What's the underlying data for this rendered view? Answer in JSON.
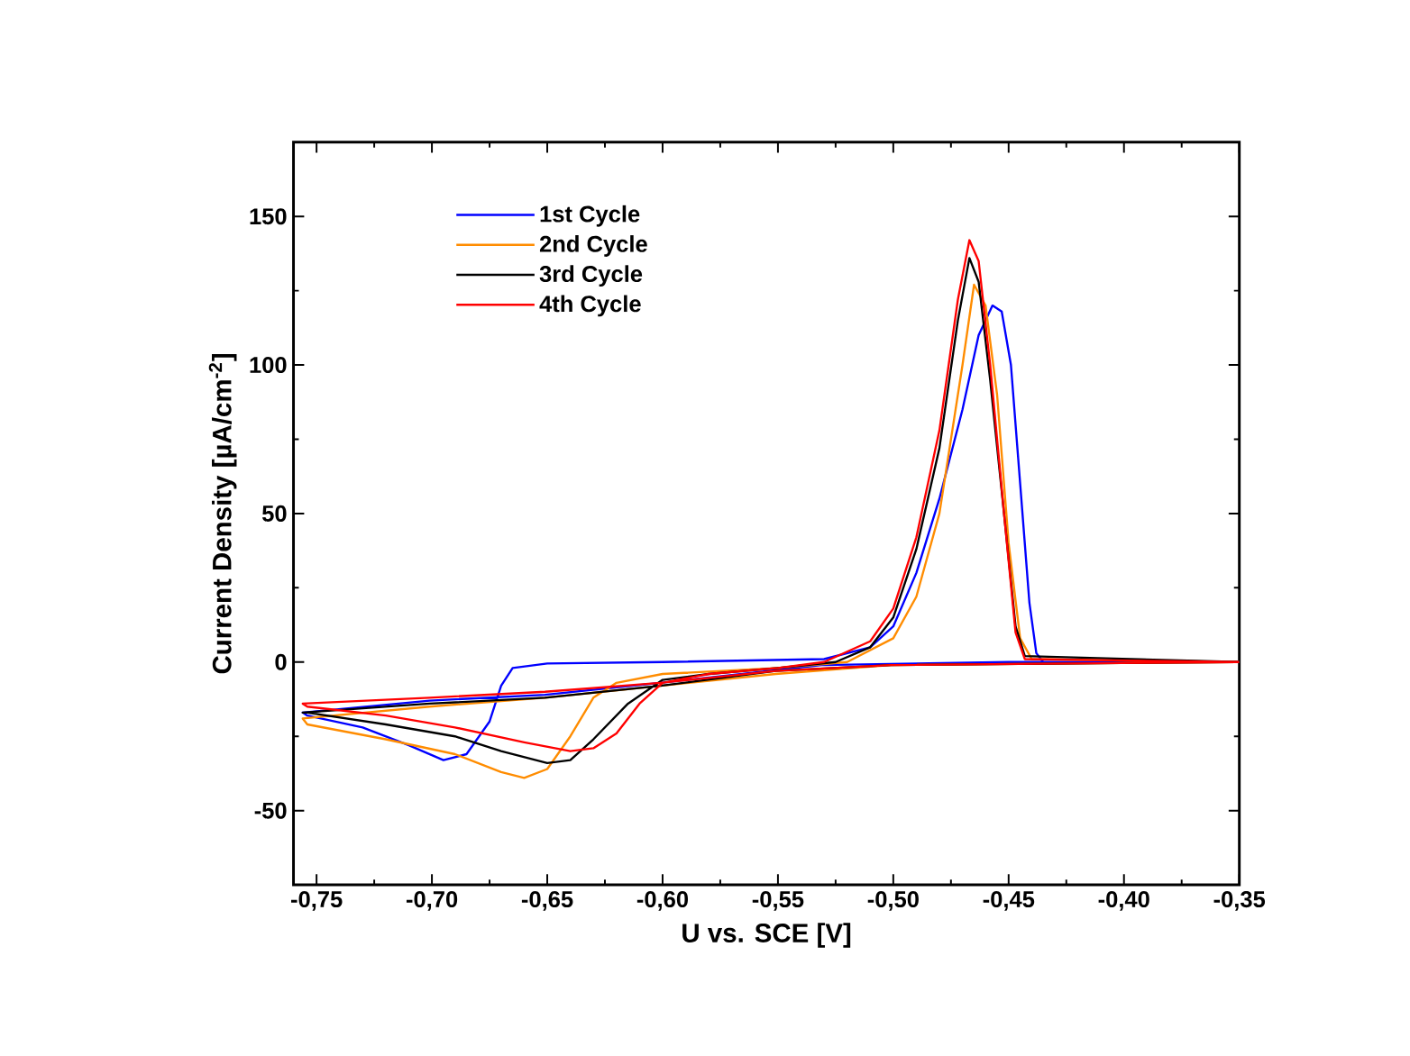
{
  "chart_data": {
    "type": "line",
    "xlabel": "U vs. SCE [V]",
    "ylabel": "Current Density [µA/cm$^{-2}$]",
    "xlim": [
      -0.76,
      -0.35
    ],
    "ylim": [
      -75,
      175
    ],
    "xticks": [
      {
        "value": -0.75,
        "label": "-0,75"
      },
      {
        "value": -0.7,
        "label": "-0,70"
      },
      {
        "value": -0.65,
        "label": "-0,65"
      },
      {
        "value": -0.6,
        "label": "-0,60"
      },
      {
        "value": -0.55,
        "label": "-0,55"
      },
      {
        "value": -0.5,
        "label": "-0,50"
      },
      {
        "value": -0.45,
        "label": "-0,45"
      },
      {
        "value": -0.4,
        "label": "-0,40"
      },
      {
        "value": -0.35,
        "label": "-0,35"
      }
    ],
    "yticks": [
      -50,
      0,
      50,
      100,
      150
    ],
    "grid": false,
    "legend": "top left",
    "line_style": "solid",
    "series": [
      {
        "name": "1st Cycle",
        "color": "#0000ff",
        "x": [
          -0.351,
          -0.45,
          -0.531,
          -0.601,
          -0.651,
          -0.701,
          -0.756,
          -0.754,
          -0.73,
          -0.71,
          -0.695,
          -0.685,
          -0.675,
          -0.67,
          -0.665,
          -0.65,
          -0.6,
          -0.53,
          -0.51,
          -0.5,
          -0.49,
          -0.48,
          -0.47,
          -0.463,
          -0.457,
          -0.453,
          -0.449,
          -0.445,
          -0.441,
          -0.438,
          -0.435,
          -0.35
        ],
        "values": [
          0,
          0,
          -1,
          -7,
          -11,
          -13,
          -17,
          -18,
          -22,
          -28,
          -33,
          -31,
          -20,
          -8,
          -2,
          -0.5,
          0,
          1,
          5,
          12,
          30,
          55,
          85,
          110,
          120,
          118,
          100,
          60,
          20,
          3,
          0,
          0
        ]
      },
      {
        "name": "2nd Cycle",
        "color": "#ff8c00",
        "x": [
          -0.351,
          -0.501,
          -0.551,
          -0.601,
          -0.651,
          -0.701,
          -0.756,
          -0.754,
          -0.72,
          -0.69,
          -0.67,
          -0.66,
          -0.65,
          -0.64,
          -0.63,
          -0.62,
          -0.6,
          -0.55,
          -0.52,
          -0.5,
          -0.49,
          -0.48,
          -0.47,
          -0.465,
          -0.46,
          -0.455,
          -0.45,
          -0.445,
          -0.44,
          -0.35
        ],
        "values": [
          0,
          -1,
          -4,
          -8,
          -12,
          -15,
          -19,
          -21,
          -26,
          -31,
          -37,
          -39,
          -36,
          -25,
          -12,
          -7,
          -4,
          -2,
          0,
          8,
          22,
          50,
          100,
          127,
          120,
          90,
          40,
          8,
          1,
          0
        ]
      },
      {
        "name": "3rd Cycle",
        "color": "#000000",
        "x": [
          -0.351,
          -0.501,
          -0.551,
          -0.601,
          -0.651,
          -0.701,
          -0.756,
          -0.754,
          -0.72,
          -0.69,
          -0.67,
          -0.65,
          -0.64,
          -0.63,
          -0.615,
          -0.6,
          -0.58,
          -0.55,
          -0.525,
          -0.51,
          -0.5,
          -0.49,
          -0.48,
          -0.472,
          -0.467,
          -0.463,
          -0.458,
          -0.452,
          -0.447,
          -0.443,
          -0.35
        ],
        "values": [
          0,
          -1,
          -3,
          -8,
          -12,
          -14,
          -17,
          -17,
          -21,
          -25,
          -30,
          -34,
          -33,
          -26,
          -14,
          -6,
          -4,
          -2,
          0,
          5,
          15,
          38,
          72,
          115,
          136,
          128,
          95,
          50,
          12,
          2,
          0
        ]
      },
      {
        "name": "4th Cycle",
        "color": "#ff0000",
        "x": [
          -0.351,
          -0.501,
          -0.551,
          -0.601,
          -0.651,
          -0.701,
          -0.756,
          -0.754,
          -0.72,
          -0.69,
          -0.66,
          -0.64,
          -0.63,
          -0.62,
          -0.61,
          -0.6,
          -0.58,
          -0.55,
          -0.53,
          -0.51,
          -0.5,
          -0.49,
          -0.48,
          -0.472,
          -0.467,
          -0.463,
          -0.458,
          -0.452,
          -0.447,
          -0.443,
          -0.35
        ],
        "values": [
          0,
          -1,
          -3,
          -7,
          -10,
          -12,
          -14,
          -15,
          -18,
          -22,
          -27,
          -30,
          -29,
          -24,
          -14,
          -7,
          -4,
          -2,
          0,
          7,
          18,
          42,
          78,
          122,
          142,
          135,
          100,
          50,
          10,
          1,
          0
        ]
      }
    ]
  }
}
